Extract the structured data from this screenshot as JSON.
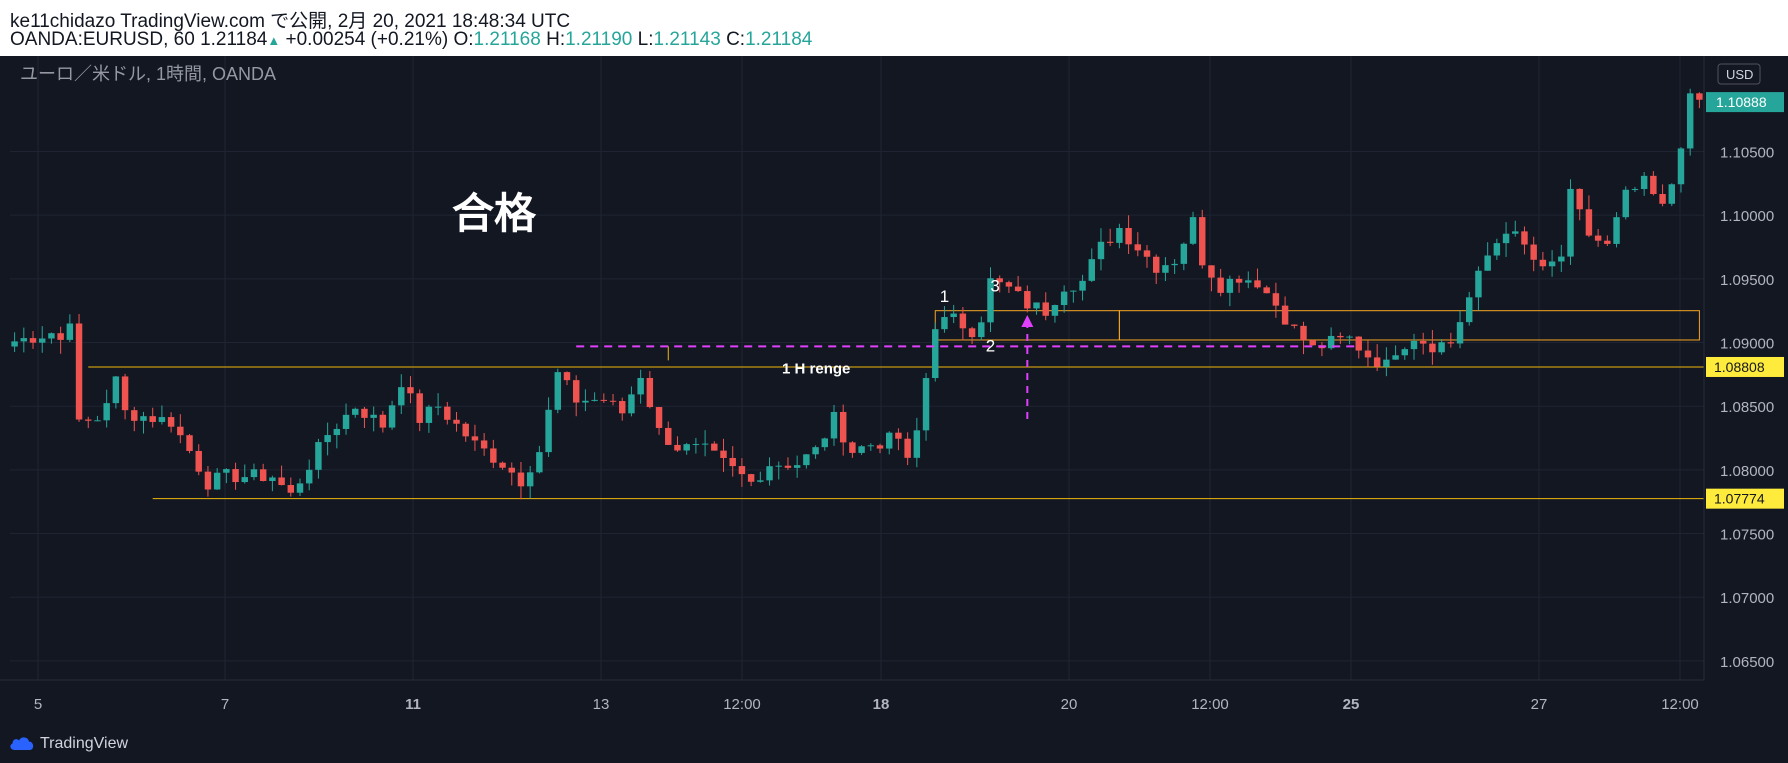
{
  "header": {
    "publish_line": "ke11chidazo TradingView.com で公開, 2月 20, 2021 18:48:34 UTC",
    "symbol": "OANDA:EURUSD, 60",
    "last_price": "1.21184",
    "change": "+0.00254 (+0.21%)",
    "ohlc": {
      "o_label": "O:",
      "o": "1.21168",
      "h_label": "H:",
      "h": "1.21190",
      "l_label": "L:",
      "l": "1.21143",
      "c_label": "C:",
      "c": "1.21184"
    }
  },
  "chart_data": {
    "type": "candlestick",
    "title": "ユーロ／米ドル, 1時間, OANDA",
    "currency": "USD",
    "ylim": [
      1.0635,
      1.1125
    ],
    "y_ticks": [
      1.065,
      1.07,
      1.075,
      1.08,
      1.085,
      1.09,
      1.095,
      1.1,
      1.105
    ],
    "y_tick_labels": [
      "1.06500",
      "1.07000",
      "1.07500",
      "1.08000",
      "1.08500",
      "1.09000",
      "1.09500",
      "1.10000",
      "1.10500"
    ],
    "x_ticks": [
      {
        "label": "5",
        "bold": false
      },
      {
        "label": "7",
        "bold": false
      },
      {
        "label": "11",
        "bold": true
      },
      {
        "label": "13",
        "bold": false
      },
      {
        "label": "12:00",
        "bold": false
      },
      {
        "label": "18",
        "bold": true
      },
      {
        "label": "20",
        "bold": false
      },
      {
        "label": "12:00",
        "bold": false
      },
      {
        "label": "25",
        "bold": true
      },
      {
        "label": "27",
        "bold": false
      },
      {
        "label": "12:00",
        "bold": false
      }
    ],
    "price_path": [
      [
        0,
        1.0901
      ],
      [
        4,
        1.0908
      ],
      [
        5,
        1.0902
      ],
      [
        6,
        1.092
      ],
      [
        7,
        1.0835
      ],
      [
        9,
        1.084
      ],
      [
        11,
        1.087
      ],
      [
        12,
        1.0845
      ],
      [
        17,
        1.0838
      ],
      [
        19,
        1.0815
      ],
      [
        21,
        1.079
      ],
      [
        23,
        1.0795
      ],
      [
        28,
        1.0795
      ],
      [
        30,
        1.078
      ],
      [
        31,
        1.0792
      ],
      [
        34,
        1.0828
      ],
      [
        37,
        1.085
      ],
      [
        40,
        1.0835
      ],
      [
        42,
        1.087
      ],
      [
        44,
        1.084
      ],
      [
        46,
        1.085
      ],
      [
        48,
        1.0835
      ],
      [
        50,
        1.082
      ],
      [
        53,
        1.0805
      ],
      [
        55,
        1.0792
      ],
      [
        57,
        1.0815
      ],
      [
        59,
        1.0875
      ],
      [
        61,
        1.0855
      ],
      [
        64,
        1.0855
      ],
      [
        66,
        1.0845
      ],
      [
        68,
        1.0875
      ],
      [
        70,
        1.083
      ],
      [
        72,
        1.0818
      ],
      [
        75,
        1.0815
      ],
      [
        78,
        1.08
      ],
      [
        80,
        1.079
      ],
      [
        82,
        1.0805
      ],
      [
        85,
        1.0805
      ],
      [
        87,
        1.0815
      ],
      [
        89,
        1.084
      ],
      [
        91,
        1.0815
      ],
      [
        93,
        1.082
      ],
      [
        96,
        1.0825
      ],
      [
        97,
        1.0805
      ],
      [
        98,
        1.083
      ],
      [
        100,
        1.0915
      ],
      [
        102,
        1.0918
      ],
      [
        104,
        1.091
      ],
      [
        105,
        1.092
      ],
      [
        106,
        1.0948
      ],
      [
        108,
        1.0942
      ],
      [
        110,
        1.093
      ],
      [
        112,
        1.0925
      ],
      [
        114,
        1.0945
      ],
      [
        116,
        1.0948
      ],
      [
        118,
        1.0975
      ],
      [
        120,
        1.099
      ],
      [
        122,
        1.0975
      ],
      [
        124,
        1.096
      ],
      [
        126,
        1.0965
      ],
      [
        128,
        1.0995
      ],
      [
        129,
        1.0965
      ],
      [
        131,
        1.0945
      ],
      [
        133,
        1.0952
      ],
      [
        135,
        1.0948
      ],
      [
        137,
        1.093
      ],
      [
        139,
        1.091
      ],
      [
        141,
        1.0895
      ],
      [
        143,
        1.09
      ],
      [
        145,
        1.0903
      ],
      [
        147,
        1.089
      ],
      [
        149,
        1.0882
      ],
      [
        150,
        1.0895
      ],
      [
        152,
        1.0905
      ],
      [
        154,
        1.0898
      ],
      [
        156,
        1.09
      ],
      [
        158,
        1.0935
      ],
      [
        160,
        1.0968
      ],
      [
        162,
        1.099
      ],
      [
        164,
        1.0975
      ],
      [
        166,
        1.0955
      ],
      [
        168,
        1.0968
      ],
      [
        169,
        1.1015
      ],
      [
        171,
        1.0985
      ],
      [
        173,
        1.0975
      ],
      [
        175,
        1.1015
      ],
      [
        177,
        1.1025
      ],
      [
        179,
        1.1005
      ],
      [
        180,
        1.1025
      ],
      [
        182,
        1.109
      ]
    ],
    "levels": [
      {
        "price": 1.08808,
        "label": "1.08808",
        "from_idx": 8,
        "color": "#f0b90b"
      },
      {
        "price": 1.07774,
        "label": "1.07774",
        "from_idx": 15,
        "color": "#f0b90b"
      }
    ],
    "last_price_label": "1.10888",
    "dashed_range": {
      "price": 1.0897,
      "from_idx": 61,
      "to_idx": 146,
      "label": "1 H renge",
      "color": "#e040fb"
    },
    "range_boxes": [
      {
        "from_idx": 100,
        "to_idx": 120,
        "top": 1.0925,
        "bottom": 1.0902
      },
      {
        "from_idx": 120,
        "to_idx": 183,
        "top": 1.0925,
        "bottom": 1.0902
      }
    ],
    "markers": [
      {
        "label": "1",
        "idx": 101,
        "price": 1.0932
      },
      {
        "label": "2",
        "idx": 106,
        "price": 1.0893
      },
      {
        "label": "3",
        "idx": 106.5,
        "price": 1.094
      }
    ],
    "arrow": {
      "idx": 110,
      "from_price": 1.084,
      "to_price": 1.092,
      "color": "#e040fb"
    },
    "annotation": "合格"
  },
  "footer": {
    "brand": "TradingView"
  }
}
